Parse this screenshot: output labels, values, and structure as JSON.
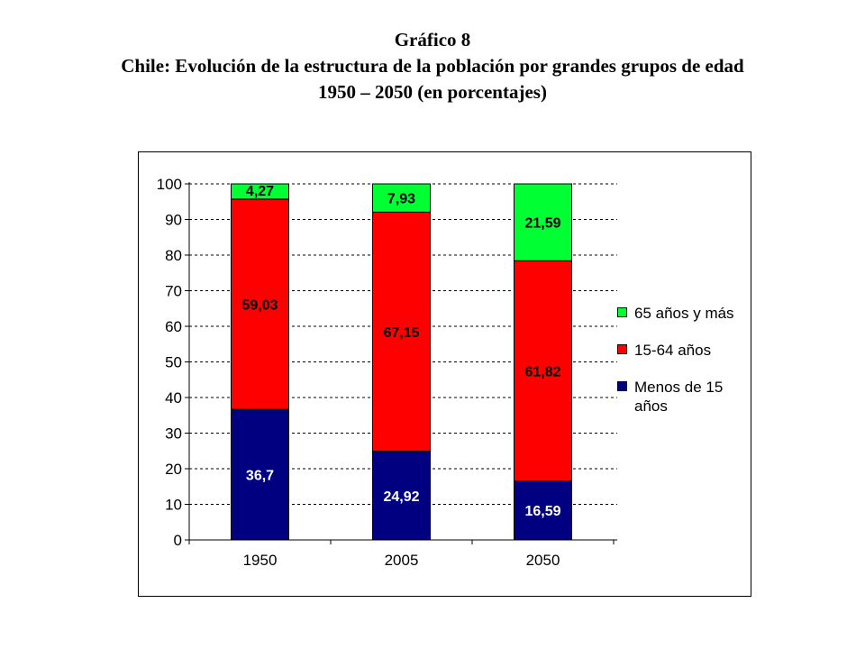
{
  "title_block": {
    "line1": "Gráfico 8",
    "line2": "Chile: Evolución de la estructura de la población por grandes grupos de edad",
    "line3": "1950 – 2050 (en porcentajes)"
  },
  "chart_data": {
    "type": "bar",
    "stacked": true,
    "categories": [
      "1950",
      "2005",
      "2050"
    ],
    "series": [
      {
        "name": "Menos de 15 años",
        "values": [
          36.7,
          24.92,
          16.59
        ],
        "labels": [
          "36,7",
          "24,92",
          "16,59"
        ],
        "color": "#000080",
        "label_color": "#ffffff"
      },
      {
        "name": "15-64 años",
        "values": [
          59.03,
          67.15,
          61.82
        ],
        "labels": [
          "59,03",
          "67,15",
          "61,82"
        ],
        "color": "#ff0000",
        "label_color": "#000000"
      },
      {
        "name": "65 años y más",
        "values": [
          4.27,
          7.93,
          21.59
        ],
        "labels": [
          "4,27",
          "7,93",
          "21,59"
        ],
        "color": "#00ff33",
        "label_color": "#000000"
      }
    ],
    "ylim": [
      0,
      100
    ],
    "yticks": [
      0,
      10,
      20,
      30,
      40,
      50,
      60,
      70,
      80,
      90,
      100
    ],
    "grid": true,
    "legend_position": "right"
  },
  "legend": {
    "items": [
      {
        "label_line1": "65 años y más",
        "label_line2": "",
        "color": "#00ff33"
      },
      {
        "label_line1": "15-64 años",
        "label_line2": "",
        "color": "#ff0000"
      },
      {
        "label_line1": "Menos de 15",
        "label_line2": "años",
        "color": "#000080"
      }
    ]
  }
}
